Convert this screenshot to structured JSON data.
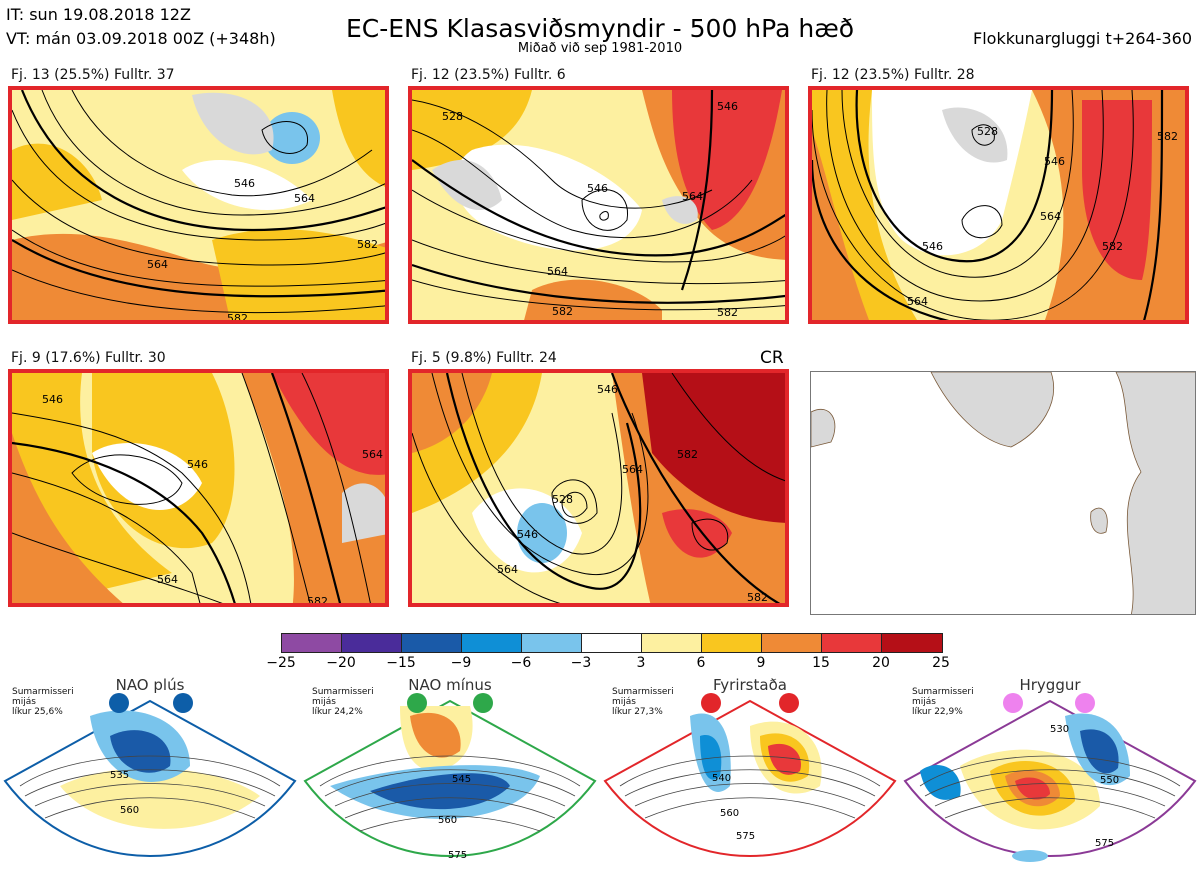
{
  "header": {
    "it_line": "IT: sun 19.08.2018 12Z",
    "vt_line": "VT: mán 03.09.2018 00Z  (+348h)",
    "title": "EC-ENS Klasasviðsmyndir - 500 hPa hæð",
    "subtitle": "Miðað við sep 1981-2010",
    "window": "Flokkunargluggi t+264-360"
  },
  "panels": [
    {
      "label": "Fj. 13 (25.5%)   Fulltr. 37",
      "contours": [
        "546",
        "564",
        "564",
        "582",
        "582"
      ]
    },
    {
      "label": "Fj. 12 (23.5%)   Fulltr. 6",
      "contours": [
        "528",
        "546",
        "546",
        "564",
        "564",
        "582",
        "582"
      ]
    },
    {
      "label": "Fj. 12 (23.5%)   Fulltr. 28",
      "contours": [
        "528",
        "546",
        "546",
        "564",
        "564",
        "582",
        "582"
      ]
    },
    {
      "label": "Fj. 9 (17.6%)   Fulltr. 30",
      "contours": [
        "546",
        "546",
        "564",
        "564",
        "582"
      ]
    },
    {
      "label": "Fj. 5 (9.8%)   Fulltr. 24",
      "contours": [
        "528",
        "546",
        "546",
        "564",
        "564",
        "582",
        "582"
      ]
    }
  ],
  "cr_label": "CR",
  "colorbar": {
    "ticks": [
      "−25",
      "−20",
      "−15",
      "−9",
      "−6",
      "−3",
      "3",
      "6",
      "9",
      "15",
      "20",
      "25"
    ],
    "colors": [
      "#8e4aa3",
      "#4a2c9a",
      "#1a5aa8",
      "#0f8fd6",
      "#79c4ec",
      "#ffffff",
      "#fdf0a0",
      "#f9c61f",
      "#ef8a36",
      "#e8383a",
      "#b50f17"
    ]
  },
  "regimes": [
    {
      "name": "NAO plús",
      "note": [
        "Sumarmisseri",
        "mijás",
        "líkur 25,6%"
      ],
      "color": "#0d5ea8",
      "labels": [
        "535",
        "560"
      ]
    },
    {
      "name": "NAO mínus",
      "note": [
        "Sumarmisseri",
        "mijás",
        "líkur 24,2%"
      ],
      "color": "#2ea84a",
      "labels": [
        "545",
        "560",
        "575"
      ]
    },
    {
      "name": "Fyrirstaða",
      "note": [
        "Sumarmisseri",
        "mijás",
        "líkur 27,3%"
      ],
      "color": "#e2262a",
      "labels": [
        "540",
        "560",
        "575"
      ]
    },
    {
      "name": "Hryggur",
      "note": [
        "Sumarmisseri",
        "mijás",
        "líkur 22,9%"
      ],
      "color": "#8b3a96",
      "labels": [
        "530",
        "550",
        "575"
      ]
    }
  ]
}
